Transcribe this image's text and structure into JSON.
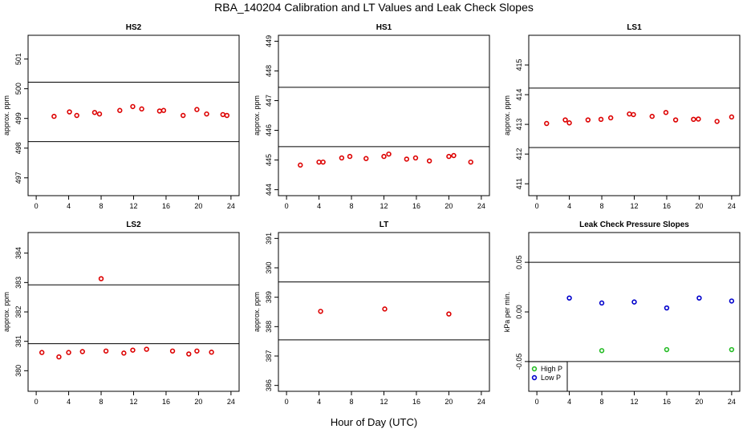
{
  "title": "RBA_140204  Calibration and LT Values and Leak Check Slopes",
  "xlabel": "Hour of Day (UTC)",
  "colors": {
    "points": "#dd0000",
    "high_p": "#22bb22",
    "low_p": "#0000cc",
    "line": "#000000"
  },
  "chart_data": [
    {
      "type": "scatter",
      "title": "HS2",
      "ylabel": "approx. ppm",
      "xlim": [
        -1,
        25
      ],
      "ylim": [
        496.4,
        501.8
      ],
      "xticks": [
        0,
        4,
        8,
        12,
        16,
        20,
        24
      ],
      "yticks": [
        497,
        498,
        499,
        500,
        501
      ],
      "hlines": [
        498.22,
        500.22
      ],
      "series": [
        {
          "x": [
            2.2,
            4.1,
            5.0,
            7.2,
            7.8,
            10.3,
            11.9,
            13.0,
            15.2,
            15.7,
            18.1,
            19.8,
            21.0,
            23.0,
            23.5
          ],
          "y": [
            499.07,
            499.22,
            499.1,
            499.2,
            499.15,
            499.27,
            499.4,
            499.32,
            499.25,
            499.27,
            499.1,
            499.3,
            499.15,
            499.13,
            499.1
          ]
        }
      ]
    },
    {
      "type": "scatter",
      "title": "HS1",
      "ylabel": "approx. ppm",
      "xlim": [
        -1,
        25
      ],
      "ylim": [
        443.8,
        449.2
      ],
      "xticks": [
        0,
        4,
        8,
        12,
        16,
        20,
        24
      ],
      "yticks": [
        444,
        445,
        446,
        447,
        448,
        449
      ],
      "hlines": [
        445.45,
        447.45
      ],
      "series": [
        {
          "x": [
            1.7,
            4.0,
            4.5,
            6.8,
            7.8,
            9.8,
            12.0,
            12.6,
            14.8,
            15.9,
            17.6,
            20.0,
            20.6,
            22.7
          ],
          "y": [
            444.83,
            444.93,
            444.93,
            445.07,
            445.12,
            445.05,
            445.12,
            445.2,
            445.03,
            445.07,
            444.97,
            445.12,
            445.15,
            444.93
          ]
        }
      ]
    },
    {
      "type": "scatter",
      "title": "LS1",
      "ylabel": "approx. ppm",
      "xlim": [
        -1,
        25
      ],
      "ylim": [
        410.6,
        416.0
      ],
      "xticks": [
        0,
        4,
        8,
        12,
        16,
        20,
        24
      ],
      "yticks": [
        411,
        412,
        413,
        414,
        415
      ],
      "hlines": [
        412.22,
        414.22
      ],
      "series": [
        {
          "x": [
            1.2,
            3.5,
            4.0,
            6.3,
            7.9,
            9.1,
            11.4,
            11.9,
            14.2,
            15.9,
            17.1,
            19.3,
            19.9,
            22.2,
            24.0
          ],
          "y": [
            413.03,
            413.15,
            413.05,
            413.15,
            413.17,
            413.22,
            413.35,
            413.33,
            413.27,
            413.4,
            413.15,
            413.17,
            413.18,
            413.1,
            413.25
          ]
        }
      ]
    },
    {
      "type": "scatter",
      "title": "LS2",
      "ylabel": "approx. ppm",
      "xlim": [
        -1,
        25
      ],
      "ylim": [
        379.3,
        384.7
      ],
      "xticks": [
        0,
        4,
        8,
        12,
        16,
        20,
        24
      ],
      "yticks": [
        380,
        381,
        382,
        383,
        384
      ],
      "hlines": [
        380.92,
        382.92
      ],
      "series": [
        {
          "x": [
            0.7,
            2.8,
            4.0,
            5.7,
            8.0,
            8.6,
            10.8,
            11.9,
            13.6,
            16.8,
            18.8,
            19.8,
            21.6
          ],
          "y": [
            380.62,
            380.47,
            380.62,
            380.65,
            383.13,
            380.67,
            380.6,
            380.7,
            380.73,
            380.67,
            380.57,
            380.67,
            380.63
          ]
        }
      ]
    },
    {
      "type": "scatter",
      "title": "LT",
      "ylabel": "approx. ppm",
      "xlim": [
        -1,
        25
      ],
      "ylim": [
        385.8,
        391.2
      ],
      "xticks": [
        0,
        4,
        8,
        12,
        16,
        20,
        24
      ],
      "yticks": [
        386,
        387,
        388,
        389,
        390,
        391
      ],
      "hlines": [
        387.55,
        389.52
      ],
      "series": [
        {
          "x": [
            4.2,
            12.1,
            20.0
          ],
          "y": [
            388.52,
            388.6,
            388.43
          ]
        }
      ]
    },
    {
      "type": "scatter",
      "title": "Leak Check Pressure Slopes",
      "ylabel": "kPa per min.",
      "xlim": [
        -1,
        25
      ],
      "ylim": [
        -0.08,
        0.08
      ],
      "xticks": [
        0,
        4,
        8,
        12,
        16,
        20,
        24
      ],
      "yticks": [
        -0.05,
        0.0,
        0.05
      ],
      "ytick_labels": [
        "-0.05",
        "0.00",
        "0.05"
      ],
      "hlines": [
        -0.05,
        0.05
      ],
      "legend": {
        "position": "bottom-left",
        "entries": [
          "High P",
          "Low P"
        ]
      },
      "series": [
        {
          "name": "High P",
          "x": [
            8,
            16,
            24
          ],
          "y": [
            -0.039,
            -0.038,
            -0.038
          ]
        },
        {
          "name": "Low P",
          "x": [
            4,
            8,
            12,
            16,
            20,
            24
          ],
          "y": [
            0.014,
            0.009,
            0.01,
            0.004,
            0.014,
            0.011
          ]
        }
      ]
    }
  ]
}
